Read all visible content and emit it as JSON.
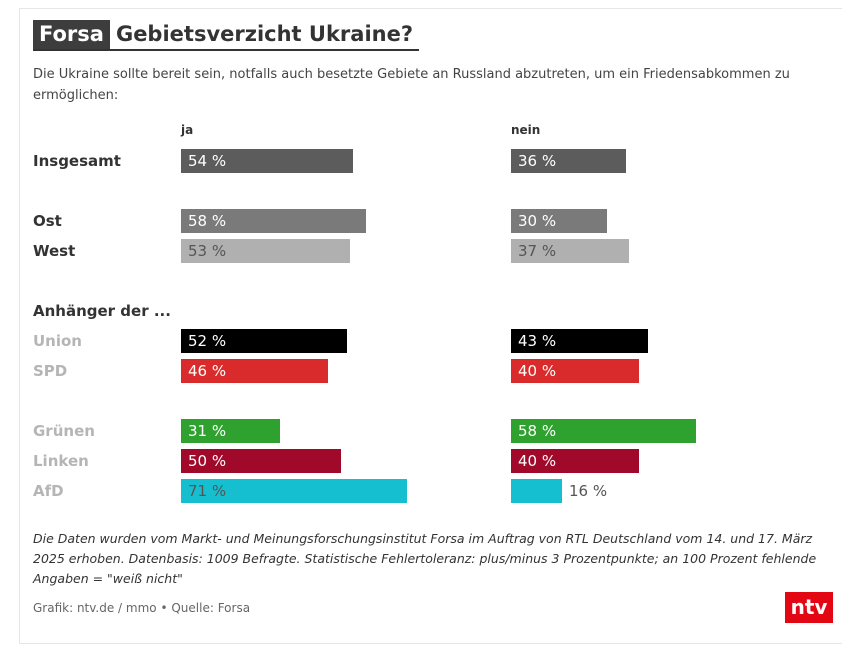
{
  "header": {
    "brand": "Forsa",
    "title": "Gebietsverzicht Ukraine?"
  },
  "subtitle": "Die Ukraine sollte bereit sein, notfalls auch besetzte Gebiete an Russland abzutreten, um ein Friedensabkommen zu ermöglichen:",
  "chart_data": {
    "type": "bar",
    "columns": [
      "ja",
      "nein"
    ],
    "group_label": "Anhänger der ...",
    "rows": [
      {
        "label": "Insgesamt",
        "ja": 54,
        "nein": 36,
        "ja_text": "54 %",
        "nein_text": "36 %",
        "color": "#5c5c5c",
        "label_color": "#333333",
        "text_color": "#ffffff",
        "nein_inside": true
      },
      {
        "label": "Ost",
        "ja": 58,
        "nein": 30,
        "ja_text": "58 %",
        "nein_text": "30 %",
        "color": "#7a7a7a",
        "label_color": "#333333",
        "text_color": "#ffffff",
        "nein_inside": true
      },
      {
        "label": "West",
        "ja": 53,
        "nein": 37,
        "ja_text": "53 %",
        "nein_text": "37 %",
        "color": "#b0b0b0",
        "label_color": "#333333",
        "text_color": "#555555",
        "nein_inside": true
      },
      {
        "label": "Union",
        "ja": 52,
        "nein": 43,
        "ja_text": "52 %",
        "nein_text": "43 %",
        "color": "#000000",
        "label_color": "#b5b5b5",
        "text_color": "#ffffff",
        "nein_inside": true
      },
      {
        "label": "SPD",
        "ja": 46,
        "nein": 40,
        "ja_text": "46 %",
        "nein_text": "40 %",
        "color": "#d92b2b",
        "label_color": "#b5b5b5",
        "text_color": "#ffffff",
        "nein_inside": true
      },
      {
        "label": "Grünen",
        "ja": 31,
        "nein": 58,
        "ja_text": "31 %",
        "nein_text": "58 %",
        "color": "#2fa12f",
        "label_color": "#b5b5b5",
        "text_color": "#ffffff",
        "nein_inside": true
      },
      {
        "label": "Linken",
        "ja": 50,
        "nein": 40,
        "ja_text": "50 %",
        "nein_text": "40 %",
        "color": "#a0092a",
        "label_color": "#b5b5b5",
        "text_color": "#ffffff",
        "nein_inside": true
      },
      {
        "label": "AfD",
        "ja": 71,
        "nein": 16,
        "ja_text": "71 %",
        "nein_text": "16 %",
        "color": "#16bfd0",
        "label_color": "#b5b5b5",
        "text_color": "#555555",
        "nein_inside": false
      }
    ]
  },
  "note": "Die Daten wurden vom Markt- und Meinungsforschungsinstitut Forsa im Auftrag von RTL Deutschland vom 14. und 17. März 2025 erhoben. Datenbasis: 1009 Befragte. Statistische Fehlertoleranz: plus/minus 3 Prozentpunkte; an 100 Prozent fehlende Angaben = \"weiß nicht\"",
  "source": "Grafik: ntv.de / mmo • Quelle: Forsa",
  "logo": {
    "text": "ntv",
    "color": "#e30613"
  }
}
